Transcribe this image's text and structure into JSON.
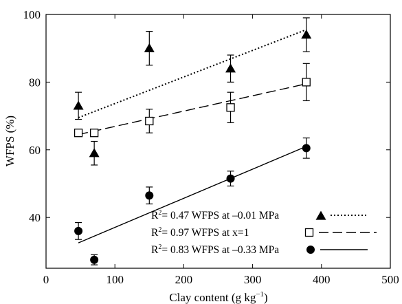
{
  "chart_data": {
    "type": "scatter",
    "xlabel": "Clay content (g kg",
    "xlabel_exp": "−1",
    "xlabel_close": ")",
    "ylabel": "WFPS (%)",
    "xlim": [
      0,
      500
    ],
    "ylim": [
      25,
      100
    ],
    "x_ticks": [
      0,
      100,
      200,
      300,
      400,
      500
    ],
    "y_ticks": [
      40,
      60,
      80,
      100
    ],
    "grid": false,
    "legend_position": "bottom-right",
    "series": [
      {
        "name": "WFPS at –0.01 MPa",
        "r2_prefix": "R",
        "r2_exp": "2",
        "r2_value": "= 0.47",
        "marker": "triangle-filled",
        "line_style": "dotted",
        "x": [
          47,
          70,
          150,
          268,
          378
        ],
        "y": [
          73,
          59,
          90,
          84,
          94
        ],
        "err": [
          4,
          3.5,
          5,
          4,
          5
        ],
        "fit": [
          [
            47,
            69.5
          ],
          [
            378,
            95.5
          ]
        ]
      },
      {
        "name": "WFPS at x=1",
        "r2_prefix": "R",
        "r2_exp": "2",
        "r2_value": "= 0.97",
        "marker": "square-open",
        "line_style": "dashed",
        "x": [
          47,
          70,
          150,
          268,
          378
        ],
        "y": [
          65,
          65,
          68.5,
          72.5,
          80
        ],
        "err": [
          0,
          0,
          3.5,
          4.5,
          5.5
        ],
        "fit": [
          [
            47,
            64.5
          ],
          [
            378,
            79.5
          ]
        ]
      },
      {
        "name": "WFPS at –0.33 MPa",
        "r2_prefix": "R",
        "r2_exp": "2",
        "r2_value": "= 0.83",
        "marker": "circle-filled",
        "line_style": "solid",
        "x": [
          47,
          70,
          150,
          268,
          378
        ],
        "y": [
          36,
          27.5,
          46.5,
          51.5,
          60.5
        ],
        "err": [
          2.5,
          1.5,
          2.5,
          2.2,
          3
        ],
        "fit": [
          [
            47,
            32.5
          ],
          [
            378,
            61
          ]
        ]
      }
    ]
  }
}
